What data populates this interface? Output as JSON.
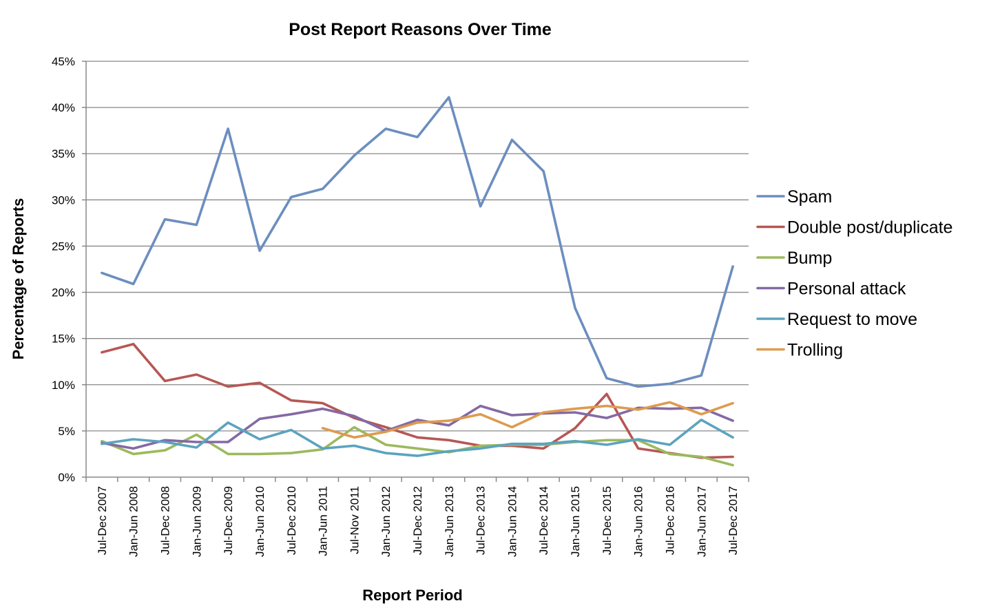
{
  "chart_data": {
    "type": "line",
    "title": "Post Report Reasons Over Time",
    "xlabel": "Report Period",
    "ylabel": "Percentage of Reports",
    "ylim": [
      0,
      45
    ],
    "ytick_step": 5,
    "ytick_suffix": "%",
    "grid": true,
    "legend_position": "right",
    "categories": [
      "Jul-Dec 2007",
      "Jan-Jun 2008",
      "Jul-Dec 2008",
      "Jan-Jun 2009",
      "Jul-Dec 2009",
      "Jan-Jun 2010",
      "Jul-Dec 2010",
      "Jan-Jun 2011",
      "Jul-Nov 2011",
      "Jan-Jun 2012",
      "Jul-Dec 2012",
      "Jan-Jun 2013",
      "Jul-Dec 2013",
      "Jan-Jun 2014",
      "Jul-Dec 2014",
      "Jan-Jun 2015",
      "Jul-Dec 2015",
      "Jan-Jun 2016",
      "Jul-Dec 2016",
      "Jan-Jun 2017",
      "Jul-Dec 2017"
    ],
    "series": [
      {
        "name": "Spam",
        "color": "#6c8ebf",
        "values": [
          22.1,
          20.9,
          27.9,
          27.3,
          37.7,
          24.5,
          30.3,
          31.2,
          34.8,
          37.7,
          36.8,
          41.1,
          29.3,
          36.5,
          33.1,
          18.3,
          10.7,
          9.8,
          10.1,
          11.0,
          22.8
        ]
      },
      {
        "name": "Double post/duplicate",
        "color": "#b65754",
        "values": [
          13.5,
          14.4,
          10.4,
          11.1,
          9.8,
          10.2,
          8.3,
          8.0,
          6.4,
          5.4,
          4.3,
          4.0,
          3.4,
          3.4,
          3.1,
          5.3,
          9.0,
          3.1,
          2.6,
          2.1,
          2.2
        ]
      },
      {
        "name": "Bump",
        "color": "#9cb95d",
        "values": [
          3.9,
          2.5,
          2.9,
          4.6,
          2.5,
          2.5,
          2.6,
          3.0,
          5.4,
          3.5,
          3.1,
          2.7,
          3.4,
          3.5,
          3.5,
          3.8,
          4.0,
          4.0,
          2.5,
          2.2,
          1.3
        ]
      },
      {
        "name": "Personal attack",
        "color": "#8469a5",
        "values": [
          3.7,
          3.1,
          4.0,
          3.8,
          3.8,
          6.3,
          6.8,
          7.4,
          6.6,
          5.0,
          6.2,
          5.6,
          7.7,
          6.7,
          6.9,
          7.0,
          6.4,
          7.5,
          7.4,
          7.5,
          6.1
        ]
      },
      {
        "name": "Request to move",
        "color": "#5ba3bf",
        "values": [
          3.6,
          4.1,
          3.8,
          3.2,
          5.9,
          4.1,
          5.1,
          3.1,
          3.4,
          2.6,
          2.3,
          2.8,
          3.1,
          3.6,
          3.6,
          3.9,
          3.5,
          4.1,
          3.5,
          6.2,
          4.3
        ]
      },
      {
        "name": "Trolling",
        "color": "#dd9b4f",
        "values": [
          null,
          null,
          null,
          null,
          null,
          null,
          null,
          5.3,
          4.3,
          4.9,
          5.9,
          6.1,
          6.8,
          5.4,
          7.0,
          7.4,
          7.7,
          7.3,
          8.1,
          6.8,
          8.0
        ]
      }
    ]
  }
}
